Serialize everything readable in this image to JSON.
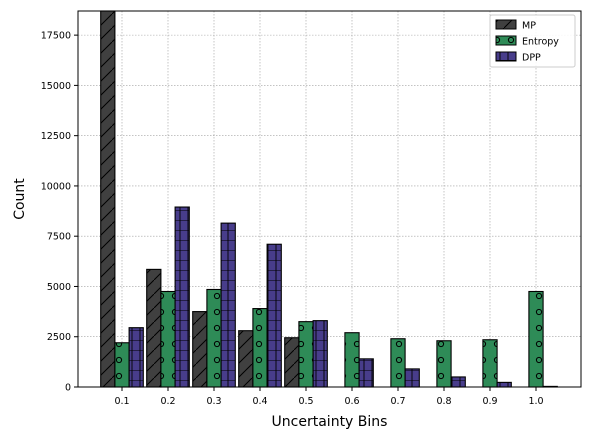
{
  "chart_data": {
    "type": "bar",
    "title": "",
    "xlabel": "Uncertainty Bins",
    "ylabel": "Count",
    "categories": [
      "0.1",
      "0.2",
      "0.3",
      "0.4",
      "0.5",
      "0.6",
      "0.7",
      "0.8",
      "0.9",
      "1.0"
    ],
    "ylim": [
      0,
      18700
    ],
    "yticks": [
      "0",
      "2500",
      "5000",
      "7500",
      "10000",
      "12500",
      "15000",
      "17500"
    ],
    "ytick_values": [
      0,
      2500,
      5000,
      7500,
      10000,
      12500,
      15000,
      17500
    ],
    "grid": true,
    "legend_position": "top-right",
    "series": [
      {
        "name": "MP",
        "color": "#404040",
        "hatch": "diagonal",
        "values": [
          18700,
          5850,
          3750,
          2800,
          2450,
          0,
          0,
          0,
          0,
          0
        ]
      },
      {
        "name": "Entropy",
        "color": "#2e8b57",
        "hatch": "circles",
        "values": [
          2200,
          4750,
          4850,
          3900,
          3250,
          2700,
          2400,
          2300,
          2350,
          4750
        ]
      },
      {
        "name": "DPP",
        "color": "#483d8b",
        "hatch": "grid",
        "values": [
          2950,
          8950,
          8150,
          7100,
          3300,
          1400,
          900,
          500,
          230,
          30
        ]
      }
    ]
  }
}
